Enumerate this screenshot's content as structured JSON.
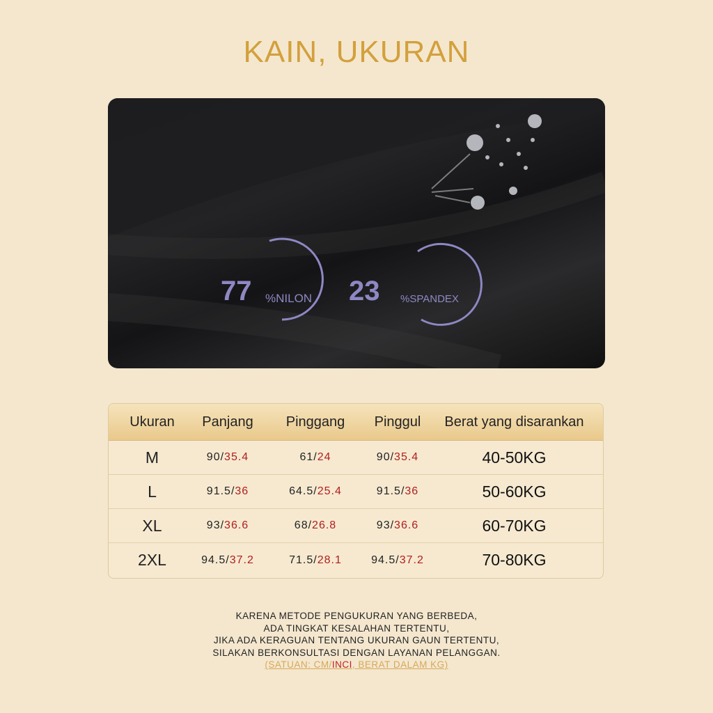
{
  "title": "KAIN, UKURAN",
  "fabric": {
    "nylon_value": "77",
    "nylon_label": "%NILON",
    "spandex_value": "23",
    "spandex_label": "%SPANDEX"
  },
  "table": {
    "headers": [
      "Ukuran",
      "Panjang",
      "Pinggang",
      "Pinggul",
      "Berat yang disarankan"
    ],
    "rows": [
      {
        "size": "M",
        "panjang_cm": "90",
        "panjang_in": "35.4",
        "pinggang_cm": "61",
        "pinggang_in": "24",
        "pinggul_cm": "90",
        "pinggul_in": "35.4",
        "berat": "40-50KG"
      },
      {
        "size": "L",
        "panjang_cm": "91.5",
        "panjang_in": "36",
        "pinggang_cm": "64.5",
        "pinggang_in": "25.4",
        "pinggul_cm": "91.5",
        "pinggul_in": "36",
        "berat": "50-60KG"
      },
      {
        "size": "XL",
        "panjang_cm": "93",
        "panjang_in": "36.6",
        "pinggang_cm": "68",
        "pinggang_in": "26.8",
        "pinggul_cm": "93",
        "pinggul_in": "36.6",
        "berat": "60-70KG"
      },
      {
        "size": "2XL",
        "panjang_cm": "94.5",
        "panjang_in": "37.2",
        "pinggang_cm": "71.5",
        "pinggang_in": "28.1",
        "pinggul_cm": "94.5",
        "pinggul_in": "37.2",
        "berat": "70-80KG"
      }
    ]
  },
  "note": {
    "lines": [
      "KARENA METODE PENGUKURAN YANG BERBEDA,",
      "ADA TINGKAT KESALAHAN TERTENTU,",
      "JIKA ADA KERAGUAN TENTANG UKURAN GAUN TERTENTU,",
      "SILAKAN BERKONSULTASI DENGAN LAYANAN PELANGGAN."
    ],
    "unit_prefix": "(SATUAN: CM/",
    "unit_inch": "INCI",
    "unit_suffix": ", BERAT DALAM KG)"
  },
  "colors": {
    "title": "#d3a03c",
    "inch": "#b01e1e",
    "accent": "#8e88c4"
  }
}
